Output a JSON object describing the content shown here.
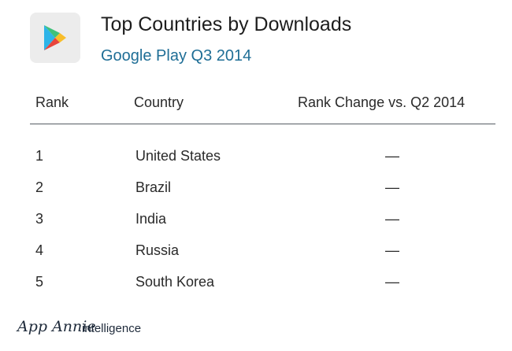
{
  "header": {
    "icon": "google-play-icon",
    "title": "Top Countries by Downloads",
    "subtitle": "Google Play Q3 2014"
  },
  "table": {
    "columns": [
      "Rank",
      "Country",
      "Rank Change vs. Q2 2014"
    ],
    "rows": [
      {
        "rank": "1",
        "country": "United States",
        "change": "—"
      },
      {
        "rank": "2",
        "country": "Brazil",
        "change": "—"
      },
      {
        "rank": "3",
        "country": "India",
        "change": "—"
      },
      {
        "rank": "4",
        "country": "Russia",
        "change": "—"
      },
      {
        "rank": "5",
        "country": "South Korea",
        "change": "—"
      }
    ]
  },
  "footer": {
    "logo_text": "App Annie",
    "logo_suffix": "intelligence"
  },
  "colors": {
    "subtitle": "#1f6e96",
    "divider": "#555c63",
    "icon_background": "#ececec"
  }
}
